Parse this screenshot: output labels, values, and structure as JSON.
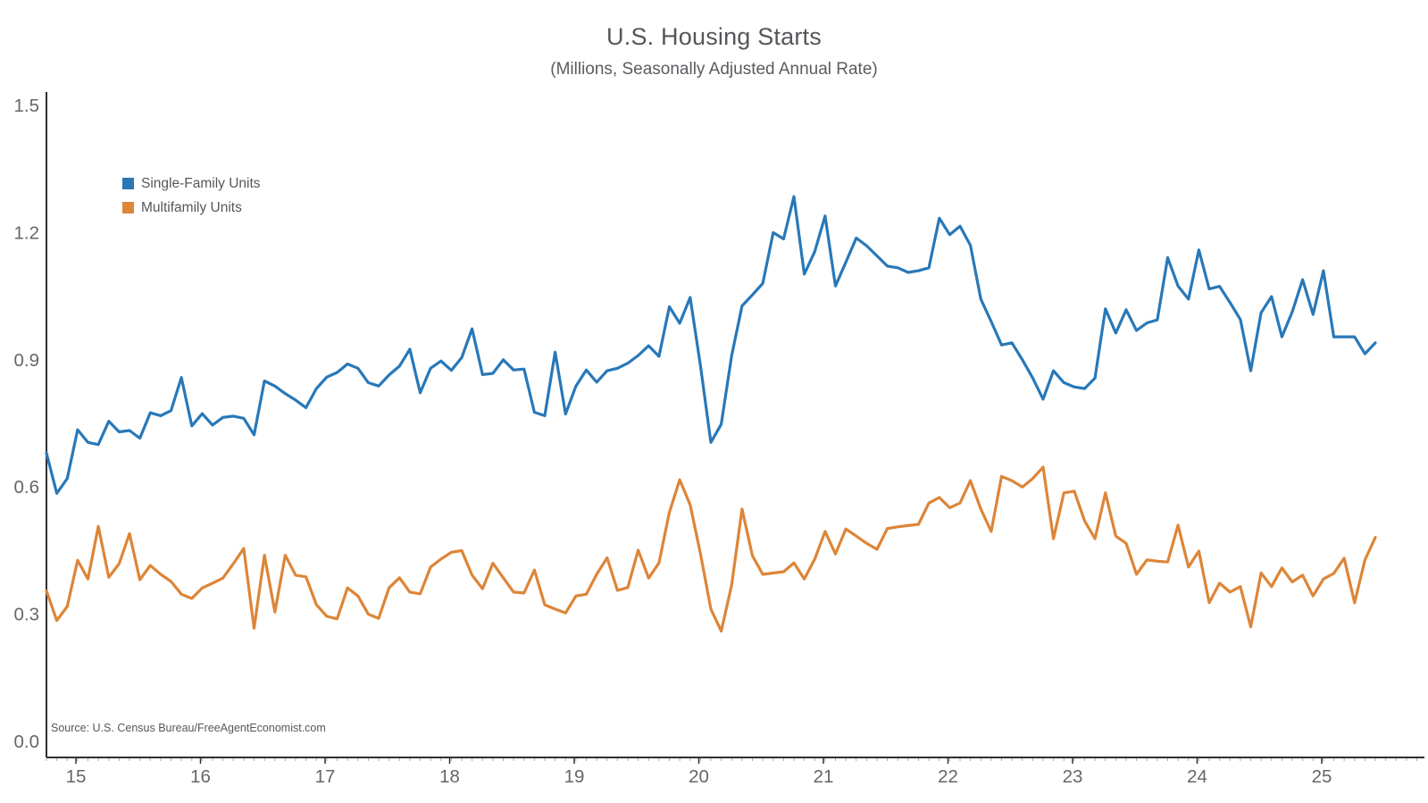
{
  "title": "U.S. Housing Starts",
  "subtitle": "(Millions, Seasonally Adjusted Annual Rate)",
  "source": "Source: U.S. Census Bureau/FreeAgentEconomist.com",
  "colors": {
    "single_family": "#2878b8",
    "multifamily": "#dd8538",
    "axis": "#2f2f33",
    "tick_text": "#666666",
    "minor_tick": "#aaaaaa"
  },
  "legend": [
    {
      "label": "Single-Family Units",
      "color": "#2878b8"
    },
    {
      "label": "Multifamily Units",
      "color": "#dd8538"
    }
  ],
  "chart_data": {
    "type": "line",
    "title": "U.S. Housing Starts",
    "subtitle": "(Millions, Seasonally Adjusted Annual Rate)",
    "cadence": "monthly",
    "x_tick_labels": [
      "15",
      "16",
      "17",
      "18",
      "19",
      "20",
      "21",
      "22",
      "23",
      "24",
      "25"
    ],
    "y_tick_labels": [
      "0.0",
      "0.3",
      "0.6",
      "0.9",
      "1.2",
      "1.5"
    ],
    "y_tick_values": [
      0.0,
      0.3,
      0.6,
      0.9,
      1.2,
      1.5
    ],
    "ylim": [
      0.0,
      1.5
    ],
    "grid": false,
    "legend_position": "upper-left-inside",
    "series": [
      {
        "name": "Single-Family Units",
        "color": "#2878b8",
        "values": [
          0.68,
          0.585,
          0.62,
          0.735,
          0.705,
          0.7,
          0.755,
          0.73,
          0.733,
          0.715,
          0.775,
          0.768,
          0.78,
          0.858,
          0.744,
          0.773,
          0.746,
          0.764,
          0.767,
          0.762,
          0.723,
          0.85,
          0.838,
          0.82,
          0.805,
          0.787,
          0.832,
          0.859,
          0.87,
          0.89,
          0.88,
          0.846,
          0.838,
          0.864,
          0.885,
          0.925,
          0.822,
          0.88,
          0.897,
          0.875,
          0.905,
          0.973,
          0.865,
          0.868,
          0.9,
          0.876,
          0.878,
          0.776,
          0.768,
          0.918,
          0.772,
          0.838,
          0.876,
          0.847,
          0.874,
          0.88,
          0.892,
          0.91,
          0.933,
          0.908,
          1.025,
          0.986,
          1.047,
          0.885,
          0.705,
          0.748,
          0.91,
          1.027,
          1.053,
          1.08,
          1.2,
          1.185,
          1.285,
          1.102,
          1.155,
          1.239,
          1.074,
          1.13,
          1.187,
          1.169,
          1.145,
          1.121,
          1.117,
          1.106,
          1.11,
          1.117,
          1.234,
          1.195,
          1.215,
          1.17,
          1.043,
          0.99,
          0.935,
          0.94,
          0.9,
          0.857,
          0.807,
          0.874,
          0.846,
          0.836,
          0.832,
          0.857,
          1.02,
          0.963,
          1.018,
          0.969,
          0.987,
          0.994,
          1.141,
          1.074,
          1.043,
          1.159,
          1.067,
          1.073,
          1.035,
          0.995,
          0.874,
          1.011,
          1.049,
          0.954,
          1.013,
          1.089,
          1.007,
          1.11,
          0.954,
          0.954,
          0.954,
          0.914,
          0.94
        ]
      },
      {
        "name": "Multifamily Units",
        "color": "#dd8538",
        "values": [
          0.355,
          0.285,
          0.318,
          0.427,
          0.383,
          0.507,
          0.387,
          0.419,
          0.49,
          0.381,
          0.415,
          0.394,
          0.377,
          0.347,
          0.337,
          0.362,
          0.373,
          0.385,
          0.419,
          0.455,
          0.267,
          0.439,
          0.305,
          0.439,
          0.392,
          0.388,
          0.322,
          0.295,
          0.289,
          0.362,
          0.343,
          0.3,
          0.29,
          0.362,
          0.386,
          0.352,
          0.348,
          0.411,
          0.43,
          0.446,
          0.45,
          0.392,
          0.36,
          0.42,
          0.386,
          0.352,
          0.35,
          0.404,
          0.322,
          0.312,
          0.303,
          0.343,
          0.347,
          0.394,
          0.433,
          0.356,
          0.363,
          0.451,
          0.385,
          0.421,
          0.54,
          0.617,
          0.558,
          0.442,
          0.312,
          0.26,
          0.369,
          0.548,
          0.438,
          0.394,
          0.397,
          0.4,
          0.421,
          0.383,
          0.43,
          0.495,
          0.442,
          0.501,
          0.484,
          0.467,
          0.453,
          0.502,
          0.506,
          0.509,
          0.512,
          0.562,
          0.575,
          0.551,
          0.562,
          0.615,
          0.548,
          0.495,
          0.625,
          0.615,
          0.6,
          0.62,
          0.647,
          0.478,
          0.586,
          0.59,
          0.52,
          0.478,
          0.586,
          0.484,
          0.467,
          0.394,
          0.428,
          0.425,
          0.423,
          0.51,
          0.411,
          0.449,
          0.327,
          0.373,
          0.352,
          0.365,
          0.27,
          0.397,
          0.365,
          0.409,
          0.376,
          0.392,
          0.343,
          0.383,
          0.396,
          0.432,
          0.327,
          0.428,
          0.481
        ]
      }
    ]
  }
}
